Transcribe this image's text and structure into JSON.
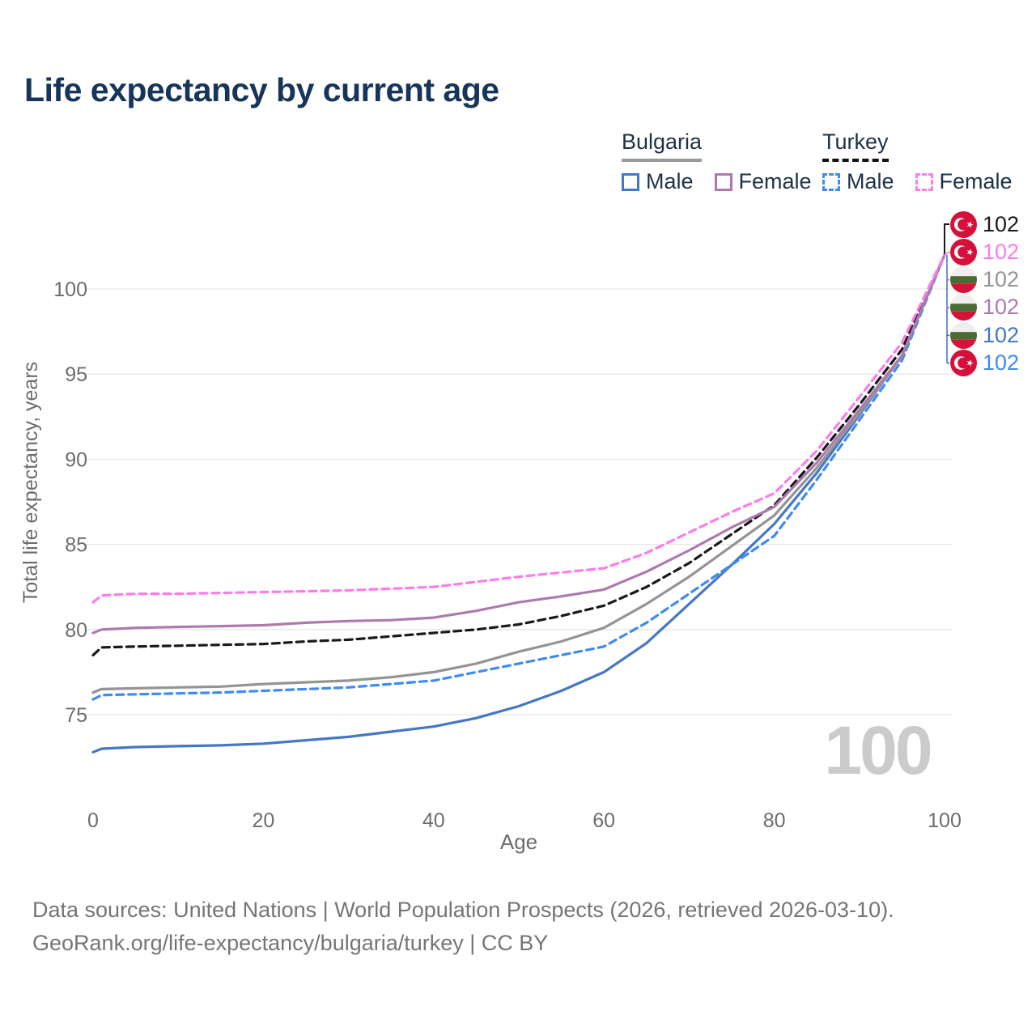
{
  "title": "Life expectancy by current age",
  "legend": {
    "groups": [
      {
        "label": "Bulgaria",
        "line_style": "solid",
        "underline_color": "#999999",
        "items": [
          {
            "label": "Male",
            "color": "#4577c6",
            "dash": false
          },
          {
            "label": "Female",
            "color": "#ad7aad",
            "dash": false
          }
        ]
      },
      {
        "label": "Turkey",
        "line_style": "dashed",
        "underline_color": "#111111",
        "items": [
          {
            "label": "Male",
            "color": "#3f8af5",
            "dash": true
          },
          {
            "label": "Female",
            "color": "#ff7ce8",
            "dash": true
          }
        ]
      }
    ]
  },
  "chart_data": {
    "type": "line",
    "title": "Life expectancy by current age",
    "xlabel": "Age",
    "ylabel": "Total life expectancy, years",
    "x_ticks": [
      0,
      20,
      40,
      60,
      80,
      100
    ],
    "y_ticks": [
      75,
      80,
      85,
      90,
      95,
      100
    ],
    "xlim": [
      0,
      100
    ],
    "ylim": [
      72,
      102
    ],
    "grid": "horizontal-only",
    "legend_position": "top-right",
    "watermark": "100",
    "x": [
      0,
      1,
      5,
      10,
      15,
      20,
      25,
      30,
      35,
      40,
      45,
      50,
      55,
      60,
      65,
      70,
      75,
      80,
      85,
      90,
      95,
      100
    ],
    "series": [
      {
        "name": "Bulgaria Male",
        "country": "bulgaria",
        "color": "#4577c6",
        "dash": false,
        "values": [
          72.8,
          73.0,
          73.1,
          73.15,
          73.2,
          73.3,
          73.5,
          73.7,
          74.0,
          74.3,
          74.8,
          75.5,
          76.4,
          77.5,
          79.2,
          81.5,
          83.8,
          86.2,
          89.2,
          92.6,
          96.1,
          102
        ]
      },
      {
        "name": "Turkey Male",
        "country": "turkey",
        "color": "#3f8af5",
        "dash": true,
        "values": [
          75.9,
          76.15,
          76.2,
          76.25,
          76.3,
          76.4,
          76.5,
          76.6,
          76.8,
          77.0,
          77.5,
          78.0,
          78.5,
          79.0,
          80.4,
          82.1,
          83.8,
          85.5,
          88.8,
          92.3,
          95.8,
          102
        ]
      },
      {
        "name": "Bulgaria Both sexes",
        "country": "bulgaria",
        "color": "#949494",
        "dash": false,
        "values": [
          76.3,
          76.5,
          76.55,
          76.6,
          76.65,
          76.8,
          76.9,
          77.0,
          77.2,
          77.5,
          78.0,
          78.7,
          79.3,
          80.1,
          81.5,
          83.1,
          84.9,
          86.7,
          89.5,
          92.7,
          96.05,
          102
        ]
      },
      {
        "name": "Turkey Both sexes",
        "country": "turkey",
        "color": "#1a1a1a",
        "dash": true,
        "values": [
          78.5,
          78.95,
          79.0,
          79.05,
          79.1,
          79.15,
          79.3,
          79.4,
          79.6,
          79.8,
          80.0,
          80.3,
          80.8,
          81.4,
          82.5,
          83.9,
          85.6,
          87.3,
          90.1,
          93.2,
          96.45,
          102
        ]
      },
      {
        "name": "Bulgaria Female",
        "country": "bulgaria",
        "color": "#ad7aad",
        "dash": false,
        "values": [
          79.8,
          80.0,
          80.1,
          80.15,
          80.2,
          80.25,
          80.4,
          80.5,
          80.55,
          80.7,
          81.1,
          81.6,
          81.95,
          82.35,
          83.4,
          84.65,
          86.0,
          87.2,
          89.8,
          92.9,
          96.1,
          102
        ]
      },
      {
        "name": "Turkey Female",
        "country": "turkey",
        "color": "#ff7ce8",
        "dash": true,
        "values": [
          81.6,
          82.0,
          82.1,
          82.1,
          82.15,
          82.2,
          82.25,
          82.3,
          82.4,
          82.5,
          82.8,
          83.1,
          83.35,
          83.6,
          84.5,
          85.7,
          86.9,
          88.0,
          90.5,
          93.65,
          96.85,
          102
        ]
      }
    ]
  },
  "end_labels": [
    {
      "flag": "turkey",
      "value": "102",
      "color": "#1a1a1a"
    },
    {
      "flag": "turkey",
      "value": "102",
      "color": "#ff7ce8"
    },
    {
      "flag": "bulgaria",
      "value": "102",
      "color": "#949494"
    },
    {
      "flag": "bulgaria",
      "value": "102",
      "color": "#ad7aad"
    },
    {
      "flag": "bulgaria",
      "value": "102",
      "color": "#4577c6"
    },
    {
      "flag": "turkey",
      "value": "102",
      "color": "#3f8af5"
    }
  ],
  "flag_colors": {
    "turkey_red": "#d6103a",
    "white": "#efefef",
    "bulgaria_green": "#4a6b33",
    "bulgaria_red": "#d5123a"
  },
  "axis_colors": {
    "tick_text": "#6d6d6d",
    "gridline": "#e8e8e8",
    "watermark": "#cbcbcb"
  },
  "footer": {
    "line1": "Data sources: United Nations | World Population Prospects (2026, retrieved 2026-03-10).",
    "line2": "GeoRank.org/life-expectancy/bulgaria/turkey | CC BY"
  }
}
